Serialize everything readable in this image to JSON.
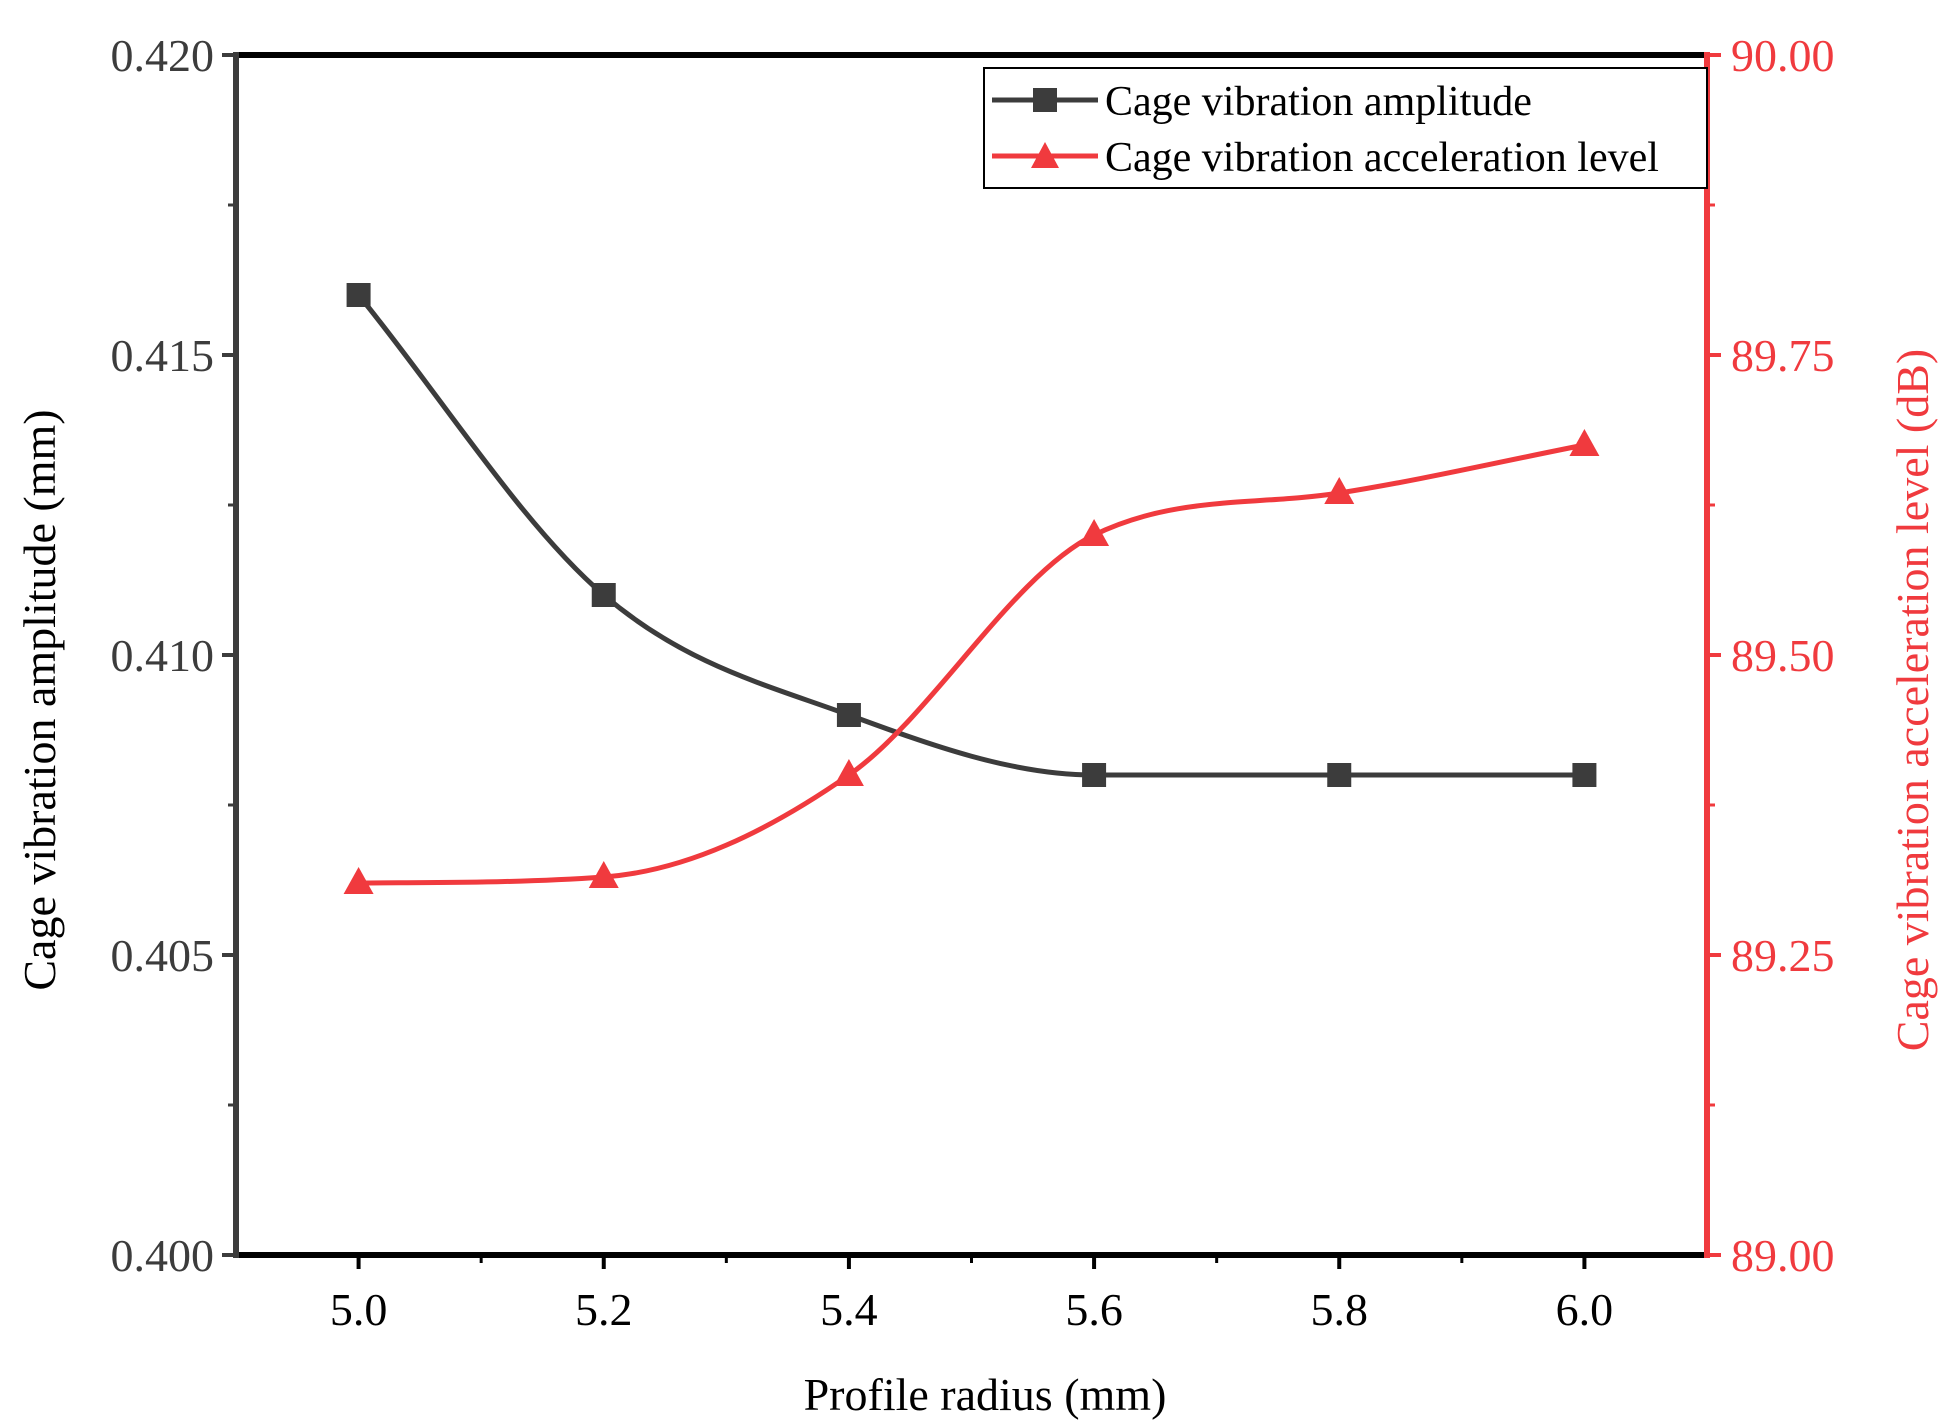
{
  "chart_data": {
    "type": "line",
    "x": [
      5.0,
      5.2,
      5.4,
      5.6,
      5.8,
      6.0
    ],
    "x_tick_labels": [
      "5.0",
      "5.2",
      "5.4",
      "5.6",
      "5.8",
      "6.0"
    ],
    "xlim": [
      4.9,
      6.1
    ],
    "xlabel": "Profile radius (mm)",
    "left_axis": {
      "label": "Cage vibration amplitude (mm)",
      "ylim": [
        0.4,
        0.42
      ],
      "ticks": [
        0.4,
        0.405,
        0.41,
        0.415,
        0.42
      ],
      "tick_labels": [
        "0.400",
        "0.405",
        "0.410",
        "0.415",
        "0.420"
      ],
      "color": "#000000"
    },
    "right_axis": {
      "label": "Cage vibration acceleration level (dB)",
      "ylim": [
        89.0,
        90.0
      ],
      "ticks": [
        89.0,
        89.25,
        89.5,
        89.75,
        90.0
      ],
      "tick_labels": [
        "89.00",
        "89.25",
        "89.50",
        "89.75",
        "90.00"
      ],
      "color": "#f03a3e"
    },
    "series": [
      {
        "name": "Cage vibration amplitude",
        "axis": "left",
        "marker": "square",
        "color": "#3c3c3c",
        "values": [
          0.416,
          0.411,
          0.409,
          0.408,
          0.408,
          0.408
        ]
      },
      {
        "name": "Cage vibration acceleration level",
        "axis": "right",
        "marker": "triangle",
        "color": "#f03a3e",
        "values": [
          89.31,
          89.315,
          89.4,
          89.6,
          89.635,
          89.675
        ]
      }
    ],
    "legend_position": "top-right",
    "grid": false
  }
}
